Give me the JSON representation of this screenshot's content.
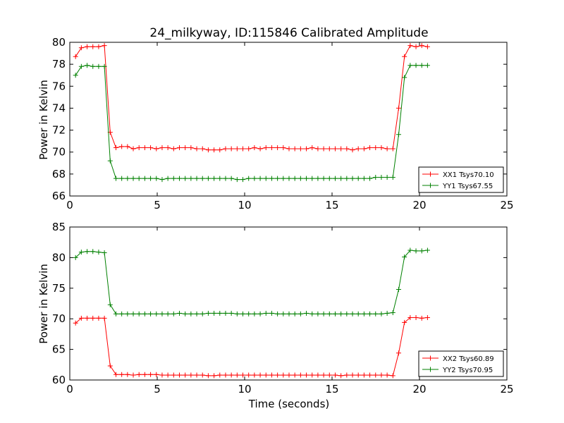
{
  "chart_data": [
    {
      "type": "line",
      "title": "24_milkyway, ID:115846 Calibrated Amplitude",
      "xlabel": "",
      "ylabel": "Power in Kelvin",
      "xlim": [
        0,
        25
      ],
      "ylim": [
        66,
        80
      ],
      "xticks": [
        0,
        5,
        10,
        15,
        20,
        25
      ],
      "yticks": [
        66,
        68,
        70,
        72,
        74,
        76,
        78,
        80
      ],
      "grid": false,
      "legend_position": "lower-right",
      "x": [
        0.33,
        0.66,
        0.99,
        1.32,
        1.65,
        1.98,
        2.31,
        2.64,
        2.97,
        3.3,
        3.63,
        3.96,
        4.29,
        4.62,
        4.95,
        5.28,
        5.61,
        5.94,
        6.27,
        6.6,
        6.93,
        7.26,
        7.59,
        7.92,
        8.25,
        8.58,
        8.91,
        9.24,
        9.57,
        9.9,
        10.23,
        10.56,
        10.89,
        11.22,
        11.55,
        11.88,
        12.21,
        12.54,
        12.87,
        13.2,
        13.53,
        13.86,
        14.19,
        14.52,
        14.85,
        15.18,
        15.51,
        15.84,
        16.17,
        16.5,
        16.83,
        17.16,
        17.49,
        17.82,
        18.15,
        18.48,
        18.81,
        19.14,
        19.47,
        19.8,
        20.13,
        20.46
      ],
      "series": [
        {
          "name": "XX1 Tsys70.10",
          "color": "#ff0000",
          "values": [
            78.7,
            79.5,
            79.6,
            79.6,
            79.6,
            79.7,
            71.8,
            70.4,
            70.5,
            70.5,
            70.3,
            70.4,
            70.4,
            70.4,
            70.3,
            70.4,
            70.4,
            70.3,
            70.4,
            70.4,
            70.4,
            70.3,
            70.3,
            70.2,
            70.2,
            70.2,
            70.3,
            70.3,
            70.3,
            70.3,
            70.3,
            70.4,
            70.3,
            70.4,
            70.4,
            70.4,
            70.4,
            70.3,
            70.3,
            70.3,
            70.3,
            70.4,
            70.3,
            70.3,
            70.3,
            70.3,
            70.3,
            70.3,
            70.2,
            70.3,
            70.3,
            70.4,
            70.4,
            70.4,
            70.3,
            70.3,
            74.0,
            78.7,
            79.7,
            79.6,
            79.7,
            79.6
          ]
        },
        {
          "name": "YY1 Tsys67.55",
          "color": "#008000",
          "values": [
            77.0,
            77.8,
            77.9,
            77.8,
            77.8,
            77.8,
            69.2,
            67.6,
            67.6,
            67.6,
            67.6,
            67.6,
            67.6,
            67.6,
            67.6,
            67.5,
            67.6,
            67.6,
            67.6,
            67.6,
            67.6,
            67.6,
            67.6,
            67.6,
            67.6,
            67.6,
            67.6,
            67.6,
            67.5,
            67.5,
            67.6,
            67.6,
            67.6,
            67.6,
            67.6,
            67.6,
            67.6,
            67.6,
            67.6,
            67.6,
            67.6,
            67.6,
            67.6,
            67.6,
            67.6,
            67.6,
            67.6,
            67.6,
            67.6,
            67.6,
            67.6,
            67.6,
            67.7,
            67.7,
            67.7,
            67.7,
            71.6,
            76.8,
            77.9,
            77.9,
            77.9,
            77.9
          ]
        }
      ]
    },
    {
      "type": "line",
      "title": "",
      "xlabel": "Time (seconds)",
      "ylabel": "Power in Kelvin",
      "xlim": [
        0,
        25
      ],
      "ylim": [
        60,
        85
      ],
      "xticks": [
        0,
        5,
        10,
        15,
        20,
        25
      ],
      "yticks": [
        60,
        65,
        70,
        75,
        80,
        85
      ],
      "grid": false,
      "legend_position": "lower-right",
      "x": [
        0.33,
        0.66,
        0.99,
        1.32,
        1.65,
        1.98,
        2.31,
        2.64,
        2.97,
        3.3,
        3.63,
        3.96,
        4.29,
        4.62,
        4.95,
        5.28,
        5.61,
        5.94,
        6.27,
        6.6,
        6.93,
        7.26,
        7.59,
        7.92,
        8.25,
        8.58,
        8.91,
        9.24,
        9.57,
        9.9,
        10.23,
        10.56,
        10.89,
        11.22,
        11.55,
        11.88,
        12.21,
        12.54,
        12.87,
        13.2,
        13.53,
        13.86,
        14.19,
        14.52,
        14.85,
        15.18,
        15.51,
        15.84,
        16.17,
        16.5,
        16.83,
        17.16,
        17.49,
        17.82,
        18.15,
        18.48,
        18.81,
        19.14,
        19.47,
        19.8,
        20.13,
        20.46
      ],
      "series": [
        {
          "name": "XX2 Tsys60.89",
          "color": "#ff0000",
          "values": [
            69.3,
            70.1,
            70.1,
            70.1,
            70.1,
            70.1,
            62.3,
            60.9,
            60.9,
            60.9,
            60.8,
            60.9,
            60.9,
            60.9,
            60.9,
            60.8,
            60.8,
            60.8,
            60.8,
            60.8,
            60.8,
            60.8,
            60.8,
            60.7,
            60.7,
            60.8,
            60.8,
            60.8,
            60.8,
            60.8,
            60.8,
            60.8,
            60.8,
            60.8,
            60.8,
            60.8,
            60.8,
            60.8,
            60.8,
            60.8,
            60.8,
            60.8,
            60.8,
            60.8,
            60.8,
            60.8,
            60.7,
            60.8,
            60.8,
            60.8,
            60.8,
            60.8,
            60.8,
            60.8,
            60.8,
            60.7,
            64.4,
            69.4,
            70.2,
            70.2,
            70.1,
            70.2
          ]
        },
        {
          "name": "YY2 Tsys70.95",
          "color": "#008000",
          "values": [
            80.0,
            80.9,
            81.0,
            81.0,
            80.9,
            80.8,
            72.3,
            70.8,
            70.8,
            70.8,
            70.8,
            70.8,
            70.8,
            70.8,
            70.8,
            70.8,
            70.8,
            70.8,
            70.9,
            70.8,
            70.8,
            70.8,
            70.8,
            70.9,
            70.9,
            70.9,
            70.9,
            70.9,
            70.8,
            70.8,
            70.8,
            70.8,
            70.8,
            70.9,
            70.9,
            70.8,
            70.8,
            70.8,
            70.8,
            70.8,
            70.9,
            70.8,
            70.8,
            70.8,
            70.8,
            70.8,
            70.8,
            70.8,
            70.8,
            70.8,
            70.8,
            70.8,
            70.8,
            70.8,
            70.9,
            71.0,
            74.8,
            80.1,
            81.2,
            81.1,
            81.1,
            81.2
          ]
        }
      ]
    }
  ]
}
